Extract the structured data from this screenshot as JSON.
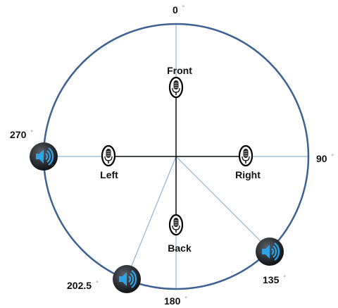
{
  "angles": [
    {
      "number": "0",
      "symbol": "°"
    },
    {
      "number": "90",
      "symbol": "°"
    },
    {
      "number": "180",
      "symbol": "°"
    },
    {
      "number": "270",
      "symbol": "°"
    },
    {
      "number": "202.5",
      "symbol": "°"
    },
    {
      "number": "135",
      "symbol": "°"
    }
  ],
  "microphones": [
    {
      "label": "Front"
    },
    {
      "label": "Left"
    },
    {
      "label": "Right"
    },
    {
      "label": "Back"
    }
  ]
}
